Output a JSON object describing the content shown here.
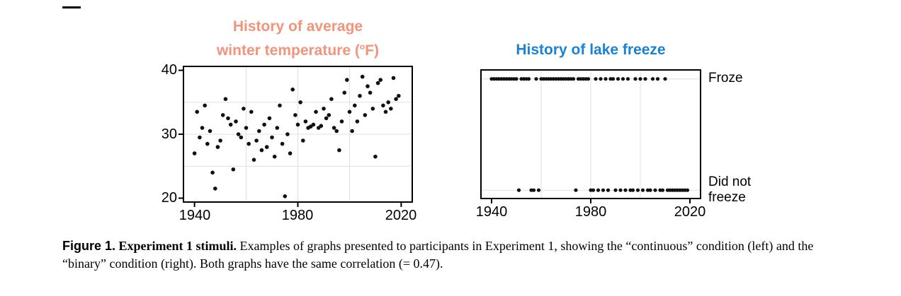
{
  "chart_data": [
    {
      "type": "scatter",
      "title_lines": [
        "History of average",
        "winter temperature ("
      ],
      "title_sup": "o",
      "title_end": "F)",
      "title_color": "#f2947c",
      "x_ticks": [
        1940,
        1980,
        2020
      ],
      "y_ticks": [
        40,
        30,
        20
      ],
      "xlim": [
        1936,
        2024
      ],
      "ylim": [
        19.5,
        40.5
      ],
      "grid_x": [
        1960,
        1980,
        2000
      ],
      "grid_y": [
        25,
        30,
        35
      ],
      "dot_color": "#111111",
      "dot_radius": 2.8,
      "points": [
        [
          1940,
          27.0
        ],
        [
          1941,
          33.5
        ],
        [
          1942,
          29.5
        ],
        [
          1943,
          31.0
        ],
        [
          1944,
          34.5
        ],
        [
          1945,
          28.5
        ],
        [
          1946,
          30.5
        ],
        [
          1947,
          24.0
        ],
        [
          1948,
          21.5
        ],
        [
          1949,
          28.0
        ],
        [
          1950,
          29.0
        ],
        [
          1951,
          33.0
        ],
        [
          1952,
          35.5
        ],
        [
          1953,
          32.5
        ],
        [
          1954,
          31.5
        ],
        [
          1955,
          24.5
        ],
        [
          1956,
          32.0
        ],
        [
          1957,
          30.0
        ],
        [
          1958,
          29.5
        ],
        [
          1959,
          34.0
        ],
        [
          1960,
          31.0
        ],
        [
          1961,
          28.5
        ],
        [
          1962,
          33.5
        ],
        [
          1963,
          26.0
        ],
        [
          1964,
          29.0
        ],
        [
          1965,
          30.5
        ],
        [
          1966,
          27.5
        ],
        [
          1967,
          31.5
        ],
        [
          1968,
          28.0
        ],
        [
          1969,
          32.5
        ],
        [
          1970,
          29.5
        ],
        [
          1971,
          26.5
        ],
        [
          1972,
          31.0
        ],
        [
          1973,
          34.5
        ],
        [
          1974,
          28.5
        ],
        [
          1975,
          20.3
        ],
        [
          1976,
          30.0
        ],
        [
          1977,
          27.0
        ],
        [
          1978,
          37.0
        ],
        [
          1979,
          33.0
        ],
        [
          1980,
          31.5
        ],
        [
          1981,
          35.0
        ],
        [
          1982,
          29.0
        ],
        [
          1983,
          32.0
        ],
        [
          1984,
          31.0
        ],
        [
          1985,
          31.2
        ],
        [
          1986,
          31.5
        ],
        [
          1987,
          33.5
        ],
        [
          1988,
          31.0
        ],
        [
          1989,
          31.3
        ],
        [
          1990,
          34.0
        ],
        [
          1991,
          32.5
        ],
        [
          1992,
          33.0
        ],
        [
          1993,
          35.5
        ],
        [
          1994,
          31.0
        ],
        [
          1995,
          30.5
        ],
        [
          1996,
          27.5
        ],
        [
          1997,
          32.0
        ],
        [
          1998,
          36.5
        ],
        [
          1999,
          38.5
        ],
        [
          2000,
          33.5
        ],
        [
          2001,
          30.5
        ],
        [
          2002,
          34.5
        ],
        [
          2003,
          32.0
        ],
        [
          2004,
          36.0
        ],
        [
          2005,
          39.0
        ],
        [
          2006,
          33.0
        ],
        [
          2007,
          37.5
        ],
        [
          2008,
          36.5
        ],
        [
          2009,
          34.0
        ],
        [
          2010,
          26.5
        ],
        [
          2011,
          38.0
        ],
        [
          2012,
          38.5
        ],
        [
          2013,
          34.5
        ],
        [
          2014,
          33.5
        ],
        [
          2015,
          35.0
        ],
        [
          2016,
          34.0
        ],
        [
          2017,
          38.8
        ],
        [
          2018,
          35.5
        ],
        [
          2019,
          36.0
        ]
      ]
    },
    {
      "type": "binary-scatter",
      "title": "History of lake freeze",
      "title_color": "#1982d4",
      "x_ticks": [
        1940,
        1980,
        2020
      ],
      "xlim": [
        1936,
        2024
      ],
      "ylim": [
        0,
        1
      ],
      "grid_x": [
        1960,
        1980,
        2000
      ],
      "category_labels": {
        "top": "Froze",
        "bottom_line1": "Did not",
        "bottom_line2": "freeze"
      },
      "levels": {
        "top": 0.935,
        "bottom": 0.06
      },
      "dot_color": "#111111",
      "dot_radius": 2.6,
      "froze_years": [
        1940,
        1941,
        1942,
        1943,
        1944,
        1945,
        1946,
        1947,
        1948,
        1949,
        1950,
        1952,
        1953,
        1954,
        1955,
        1958,
        1960,
        1961,
        1962,
        1963,
        1964,
        1965,
        1966,
        1967,
        1968,
        1969,
        1970,
        1971,
        1972,
        1973,
        1975,
        1976,
        1977,
        1978,
        1979,
        1982,
        1984,
        1986,
        1988,
        1989,
        1991,
        1993,
        1995,
        1998,
        2000,
        2002,
        2005,
        2007,
        2010
      ],
      "did_not_freeze_years": [
        1951,
        1956,
        1957,
        1959,
        1974,
        1980,
        1981,
        1983,
        1985,
        1987,
        1990,
        1992,
        1994,
        1996,
        1997,
        1999,
        2001,
        2003,
        2004,
        2006,
        2008,
        2009,
        2011,
        2012,
        2013,
        2014,
        2015,
        2016,
        2017,
        2018,
        2019
      ]
    }
  ],
  "caption": {
    "label": "Figure 1.",
    "title": "Experiment 1 stimuli.",
    "body": "Examples of graphs presented to participants in Experiment 1, showing the “continuous” condition (left) and the “binary” condition (right). Both graphs have the same correlation (= 0.47)."
  }
}
